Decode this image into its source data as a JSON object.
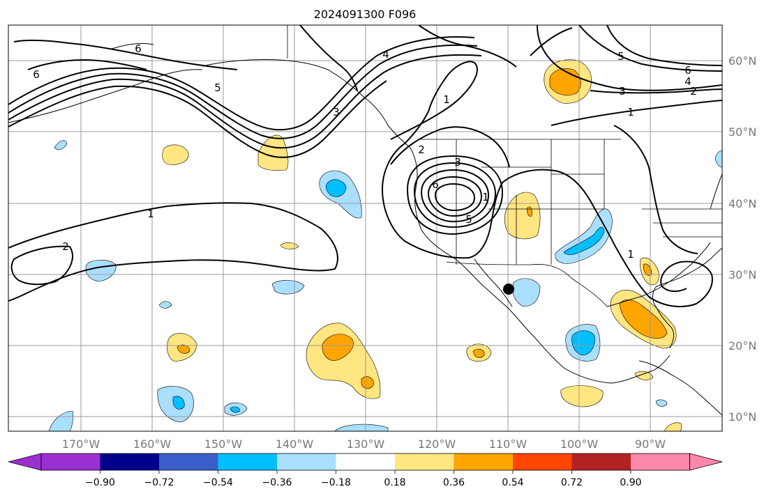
{
  "title": "2024091300 F096",
  "map": {
    "lon_ticks": [
      "170°W",
      "160°W",
      "150°W",
      "140°W",
      "130°W",
      "120°W",
      "110°W",
      "100°W",
      "90°W"
    ],
    "lat_ticks": [
      "60°N",
      "50°N",
      "40°N",
      "30°N",
      "20°N",
      "10°N"
    ],
    "contour_labels": [
      "6",
      "6",
      "5",
      "3",
      "4",
      "1",
      "2",
      "3",
      "6",
      "5",
      "1",
      "2",
      "1",
      "5",
      "6",
      "4",
      "3",
      "2",
      "1",
      "1"
    ],
    "marker": "black-dot"
  },
  "colorbar": {
    "ticks": [
      "−0.90",
      "−0.72",
      "−0.54",
      "−0.36",
      "−0.18",
      "0.18",
      "0.36",
      "0.54",
      "0.72",
      "0.90"
    ],
    "colors": [
      "#9b30d0",
      "#00008b",
      "#3a5fcd",
      "#00bfff",
      "#aadfff",
      "#ffffff",
      "#ffe680",
      "#ffa500",
      "#ff4500",
      "#b22222",
      "#ff88aa"
    ]
  }
}
